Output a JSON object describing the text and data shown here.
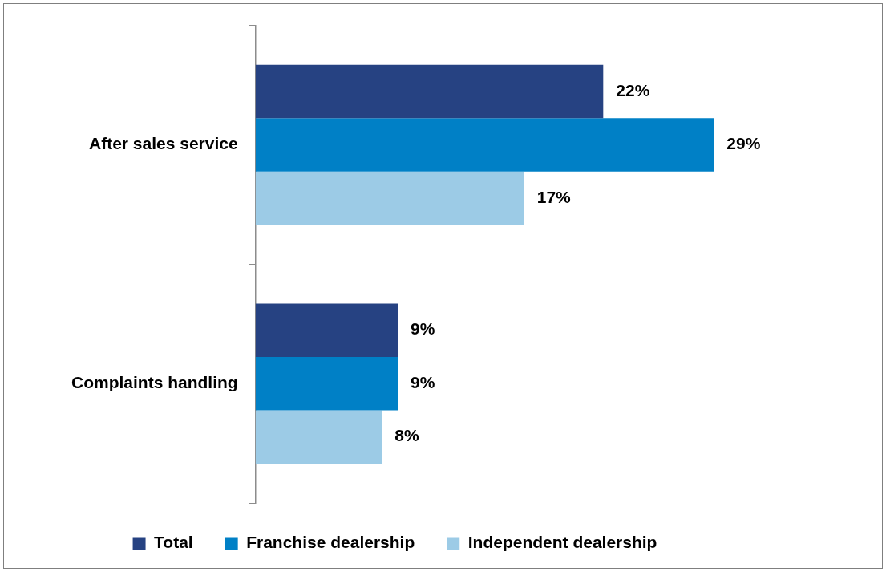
{
  "chart_data": {
    "type": "bar",
    "orientation": "horizontal",
    "categories": [
      "After sales service",
      "Complaints handling"
    ],
    "series": [
      {
        "name": "Total",
        "color": "#264282",
        "values": [
          22,
          9
        ],
        "value_labels": [
          "22%",
          "9%"
        ]
      },
      {
        "name": "Franchise dealership",
        "color": "#0080c6",
        "values": [
          29,
          9
        ],
        "value_labels": [
          "29%",
          "9%"
        ]
      },
      {
        "name": "Independent dealership",
        "color": "#9ccbe6",
        "values": [
          17,
          8
        ],
        "value_labels": [
          "17%",
          "8%"
        ]
      }
    ],
    "tick_labels": "y",
    "legend": "bottom"
  }
}
